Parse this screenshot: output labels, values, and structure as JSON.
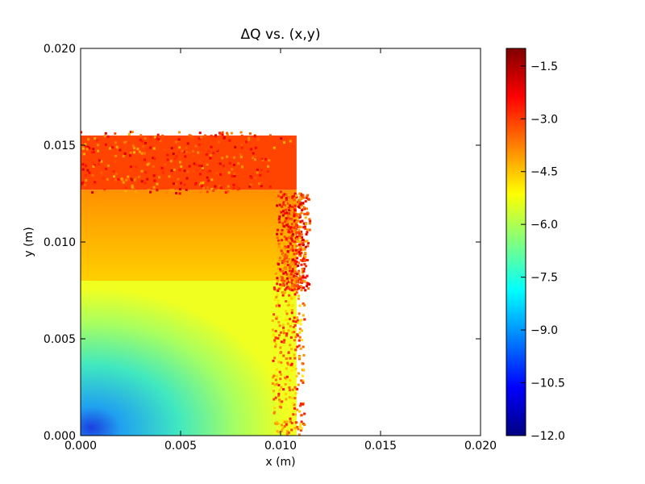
{
  "chart_data": {
    "type": "scatter",
    "title": "ΔQ vs. (x,y)",
    "xlabel": "x (m)",
    "ylabel": "y (m)",
    "xlim": [
      0.0,
      0.02
    ],
    "ylim": [
      0.0,
      0.02
    ],
    "xticks": [
      "0.000",
      "0.005",
      "0.010",
      "0.015",
      "0.020"
    ],
    "xtick_values": [
      0.0,
      0.005,
      0.01,
      0.015,
      0.02
    ],
    "yticks": [
      "0.000",
      "0.005",
      "0.010",
      "0.015",
      "0.020"
    ],
    "ytick_values": [
      0.0,
      0.005,
      0.01,
      0.015,
      0.02
    ],
    "grid": false,
    "colormap": "jet",
    "colorbar": {
      "min": -12.0,
      "max": -1.0,
      "ticks": [
        "−1.5",
        "−3.0",
        "−4.5",
        "−6.0",
        "−7.5",
        "−9.0",
        "−10.5",
        "−12.0"
      ],
      "tick_values": [
        -1.5,
        -3.0,
        -4.5,
        -6.0,
        -7.5,
        -9.0,
        -10.5,
        -12.0
      ]
    },
    "regions": [
      {
        "x": [
          0.0,
          0.0108
        ],
        "y": [
          0.0,
          0.008
        ],
        "value": -6.8
      },
      {
        "x": [
          0.0,
          0.0108
        ],
        "y": [
          0.008,
          0.0127
        ],
        "value": -4.0
      },
      {
        "x": [
          0.0,
          0.0108
        ],
        "y": [
          0.0127,
          0.0155
        ],
        "value": -3.1
      }
    ],
    "features": [
      {
        "description": "low-value core near origin",
        "x": 0.0005,
        "y": 0.0003,
        "value": -11.0
      },
      {
        "description": "edge of stable region",
        "x": 0.0108,
        "y": 0.005,
        "value": -2.6
      }
    ]
  }
}
